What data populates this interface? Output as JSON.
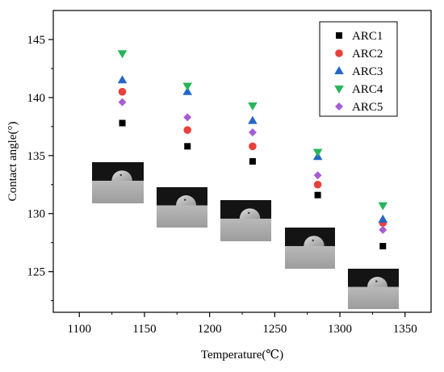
{
  "chart_data": {
    "type": "scatter",
    "xlabel": "Temperature(℃)",
    "ylabel": "Contact angle(°)",
    "xlim": [
      1080,
      1370
    ],
    "ylim": [
      121.5,
      147.5
    ],
    "xticks": [
      1100,
      1150,
      1200,
      1250,
      1300,
      1350
    ],
    "yticks": [
      125,
      130,
      135,
      140,
      145
    ],
    "grid": false,
    "legend_position": "top-right",
    "series": [
      {
        "name": "ARC1",
        "marker": "square",
        "color": "#000000",
        "x": [
          1133,
          1183,
          1233,
          1283,
          1333
        ],
        "y": [
          137.8,
          135.8,
          134.5,
          131.6,
          127.2
        ]
      },
      {
        "name": "ARC2",
        "marker": "circle",
        "color": "#e8413c",
        "x": [
          1133,
          1183,
          1233,
          1283,
          1333
        ],
        "y": [
          140.5,
          137.2,
          135.8,
          132.5,
          129.2
        ]
      },
      {
        "name": "ARC3",
        "marker": "triangle-up",
        "color": "#2566c8",
        "x": [
          1133,
          1183,
          1233,
          1283,
          1333
        ],
        "y": [
          141.5,
          140.5,
          138.0,
          134.9,
          129.5
        ]
      },
      {
        "name": "ARC4",
        "marker": "triangle-down",
        "color": "#27b55a",
        "x": [
          1133,
          1183,
          1233,
          1283,
          1333
        ],
        "y": [
          143.8,
          141.0,
          139.3,
          135.3,
          130.7
        ]
      },
      {
        "name": "ARC5",
        "marker": "diamond",
        "color": "#a65ed3",
        "x": [
          1133,
          1183,
          1233,
          1283,
          1333
        ],
        "y": [
          139.6,
          138.3,
          137.0,
          133.3,
          128.6
        ]
      }
    ]
  }
}
